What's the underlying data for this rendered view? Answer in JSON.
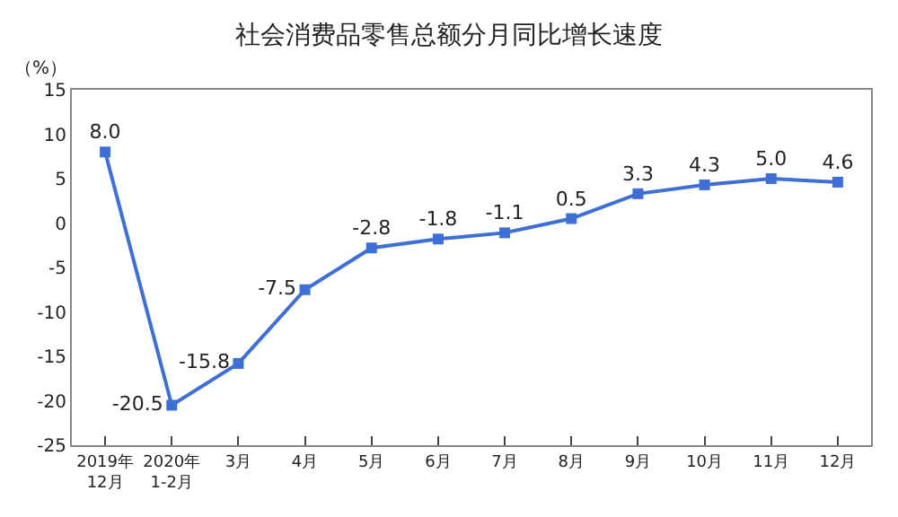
{
  "chart_data": {
    "type": "line",
    "title": "社会消费品零售总额分月同比增长速度",
    "ylabel": "（%）",
    "categories": [
      "2019年\n12月",
      "2020年\n1-2月",
      "3月",
      "4月",
      "5月",
      "6月",
      "7月",
      "8月",
      "9月",
      "10月",
      "11月",
      "12月"
    ],
    "series": [
      {
        "color": "#3d6fd6",
        "values": [
          8.0,
          -20.5,
          -15.8,
          -7.5,
          -2.8,
          -1.8,
          -1.1,
          0.5,
          3.3,
          4.3,
          5.0,
          4.6
        ]
      }
    ],
    "value_labels": [
      "8.0",
      "-20.5",
      "-15.8",
      "-7.5",
      "-2.8",
      "-1.8",
      "-1.1",
      "0.5",
      "3.3",
      "4.3",
      "5.0",
      "4.6"
    ],
    "ylim": [
      -25,
      15
    ],
    "yticks": [
      -25,
      -20,
      -15,
      -10,
      -5,
      0,
      5,
      10,
      15
    ],
    "marker": "square",
    "line_style": "solid"
  }
}
